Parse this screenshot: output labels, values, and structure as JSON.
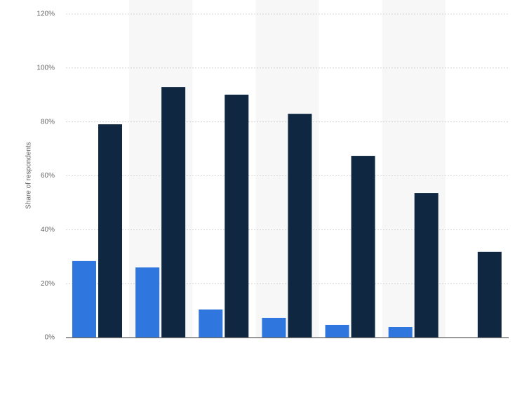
{
  "chart_data": {
    "type": "bar",
    "y_label": "Share of respondents",
    "categories": [
      null,
      null,
      null,
      null,
      null,
      null,
      null
    ],
    "series": [
      {
        "color": "#2f76de",
        "values": [
          28.4,
          26,
          10.4,
          7.3,
          4.7,
          3.9,
          null
        ]
      },
      {
        "color": "#0f2740",
        "values": [
          79.1,
          92.9,
          90.1,
          83,
          67.4,
          53.6,
          31.8
        ]
      }
    ],
    "ylim": [
      0,
      120
    ],
    "yticks": [
      {
        "value": 0,
        "label": "0%"
      },
      {
        "value": 20,
        "label": "20%"
      },
      {
        "value": 40,
        "label": "40%"
      },
      {
        "value": 60,
        "label": "60%"
      },
      {
        "value": 80,
        "label": "80%"
      },
      {
        "value": 100,
        "label": "100%"
      },
      {
        "value": 120,
        "label": "120%"
      }
    ],
    "grid": true
  }
}
